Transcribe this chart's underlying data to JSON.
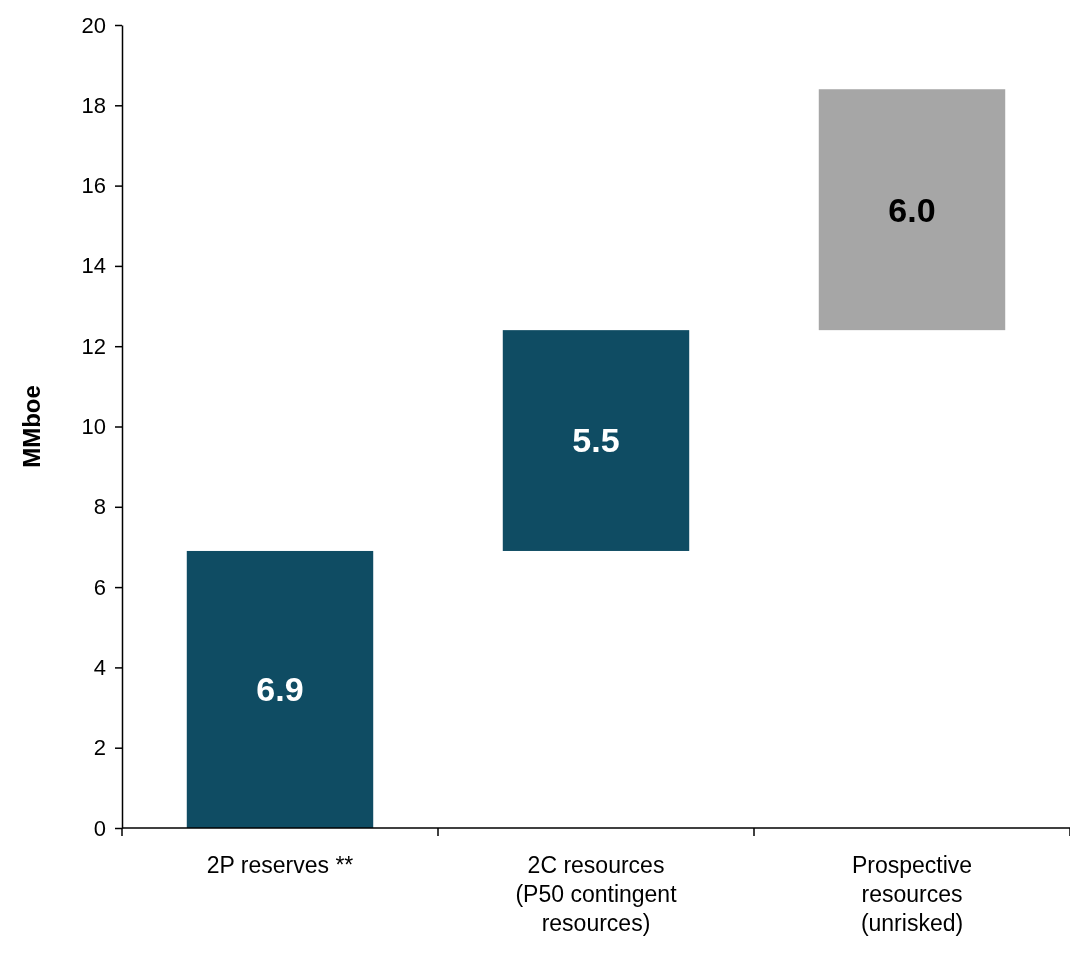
{
  "chart_data": {
    "type": "bar",
    "ylabel": "MMboe",
    "categories": [
      "2P reserves **",
      "2C resources\n(P50 contingent\nresources)",
      "Prospective\nresources\n(unrisked)"
    ],
    "values": [
      6.9,
      5.5,
      6.0
    ],
    "base": [
      0,
      6.9,
      12.4
    ],
    "colors": [
      "#0f4c63",
      "#0f4c63",
      "#a6a6a6"
    ],
    "ylim": [
      0,
      20
    ],
    "yticks": [
      0,
      2,
      4,
      6,
      8,
      10,
      12,
      14,
      16,
      18,
      20
    ],
    "value_labels": [
      "6.9",
      "5.5",
      "6.0"
    ],
    "grid": false
  }
}
